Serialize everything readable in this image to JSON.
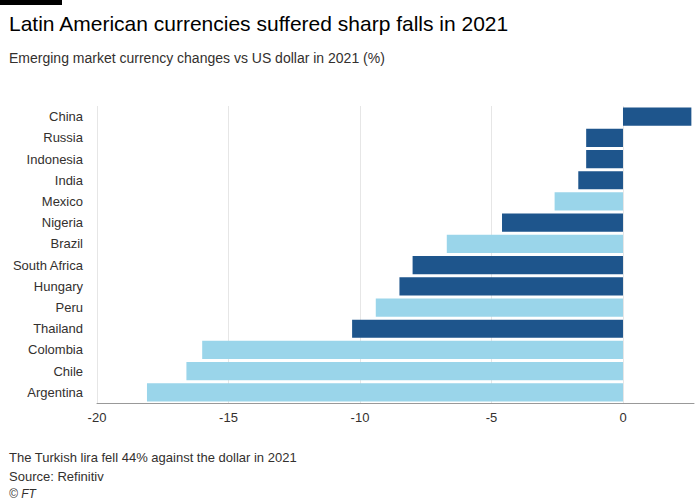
{
  "chart_data": {
    "type": "bar",
    "orientation": "horizontal",
    "title": "Latin American currencies suffered sharp falls in 2021",
    "subtitle": "Emerging market currency changes vs US dollar in 2021 (%)",
    "categories": [
      "China",
      "Russia",
      "Indonesia",
      "India",
      "Mexico",
      "Nigeria",
      "Brazil",
      "South Africa",
      "Hungary",
      "Peru",
      "Thailand",
      "Colombia",
      "Chile",
      "Argentina"
    ],
    "values": [
      2.6,
      -1.4,
      -1.4,
      -1.7,
      -2.6,
      -4.6,
      -6.7,
      -8.0,
      -8.5,
      -9.4,
      -10.3,
      -16.0,
      -16.6,
      -18.1
    ],
    "colors": [
      "#1e558c",
      "#1e558c",
      "#1e558c",
      "#1e558c",
      "#9ad5ea",
      "#1e558c",
      "#9ad5ea",
      "#1e558c",
      "#1e558c",
      "#9ad5ea",
      "#1e558c",
      "#9ad5ea",
      "#9ad5ea",
      "#9ad5ea"
    ],
    "xlim": [
      -20,
      2.7
    ],
    "xticks": [
      -20,
      -15,
      -10,
      -5,
      0
    ],
    "grid": true,
    "annotations": [
      "The Turkish lira fell 44% against the dollar in 2021",
      "Source: Refinitiv",
      "© FT"
    ]
  }
}
